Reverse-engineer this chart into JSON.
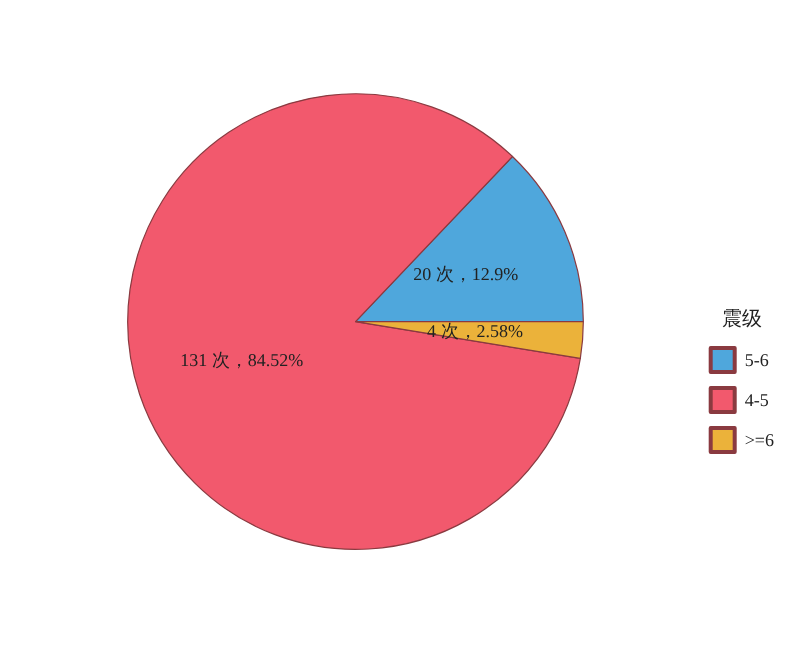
{
  "chart_data": {
    "type": "pie",
    "legend_title": "震级",
    "legend": "right",
    "categories": [
      "5-6",
      "4-5",
      ">=6"
    ],
    "values": [
      20,
      131,
      4
    ],
    "colors": [
      "#4fa7dc",
      "#f2596d",
      "#ebb23a"
    ],
    "value_labels": [
      "20 次，12.9%",
      "131 次，84.52%",
      "4 次，2.58%"
    ]
  }
}
